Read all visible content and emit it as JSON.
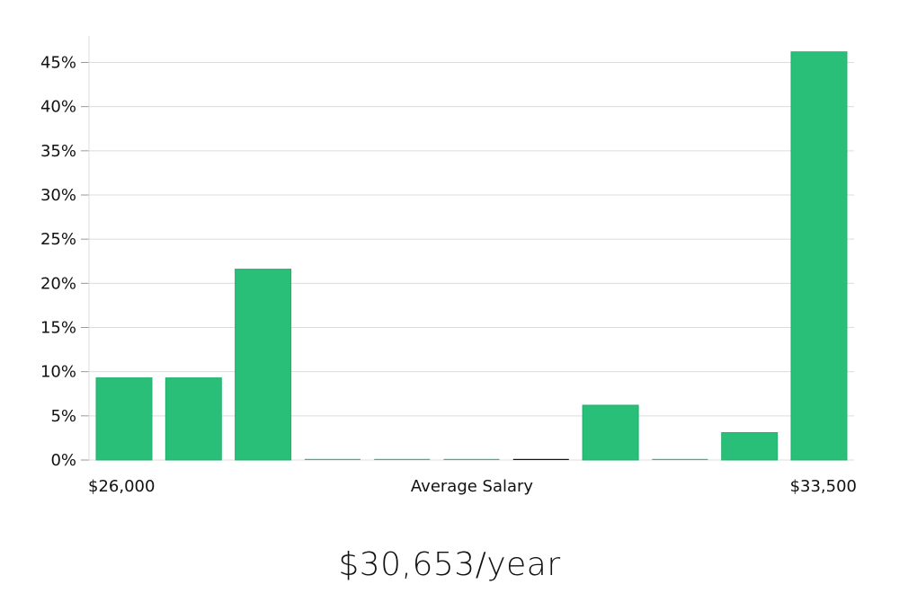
{
  "chart_data": {
    "type": "bar",
    "values": [
      9.3,
      9.3,
      21.6,
      0,
      0,
      0,
      0,
      6.2,
      0,
      3.1,
      46.2
    ],
    "ylim": [
      0,
      48
    ],
    "yticks": [
      0,
      5,
      10,
      15,
      20,
      25,
      30,
      35,
      40,
      45
    ],
    "ytick_suffix": "%",
    "x_min_label": "$26,000",
    "x_max_label": "$33,500",
    "xlabel": "Average Salary",
    "grid": true,
    "bar_color": "#2abf78",
    "highlight_index": 6,
    "highlight_color": "#111111"
  },
  "summary": {
    "salary": "$30,653/year"
  }
}
